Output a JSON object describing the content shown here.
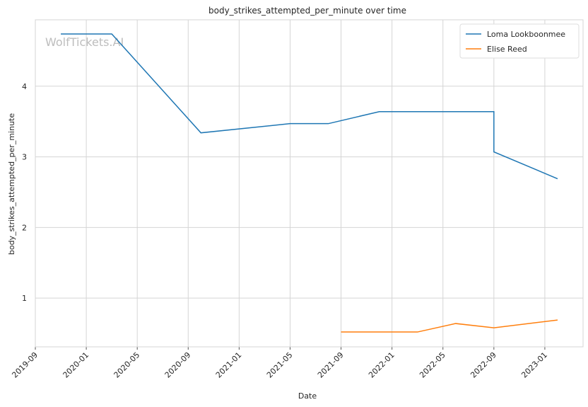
{
  "chart_data": {
    "type": "line",
    "title": "body_strikes_attempted_per_minute over time",
    "x_label": "Date",
    "y_label": "body_strikes_attempted_per_minute",
    "watermark": "WolfTickets.AI",
    "xlim": [
      "2019-09",
      "2023-04"
    ],
    "xticks": [
      "2019-09",
      "2020-01",
      "2020-05",
      "2020-09",
      "2021-01",
      "2021-05",
      "2021-09",
      "2022-01",
      "2022-05",
      "2022-09",
      "2023-01"
    ],
    "ylim": [
      0.31,
      4.94
    ],
    "yticks": [
      1,
      2,
      3,
      4
    ],
    "grid": true,
    "legend": "upper-right",
    "series": [
      {
        "name": "Loma Lookboonmee",
        "color": "#1f77b4",
        "x": [
          "2019-11",
          "2020-03",
          "2020-10",
          "2021-05",
          "2021-08",
          "2021-12",
          "2022-09",
          "2022-09",
          "2023-02"
        ],
        "values": [
          4.74,
          4.74,
          3.34,
          3.47,
          3.47,
          3.64,
          3.64,
          3.07,
          2.69
        ]
      },
      {
        "name": "Elise Reed",
        "color": "#ff7f0e",
        "x": [
          "2021-09",
          "2022-03",
          "2022-06",
          "2022-09",
          "2023-02"
        ],
        "values": [
          0.52,
          0.52,
          0.64,
          0.58,
          0.69
        ]
      }
    ]
  }
}
